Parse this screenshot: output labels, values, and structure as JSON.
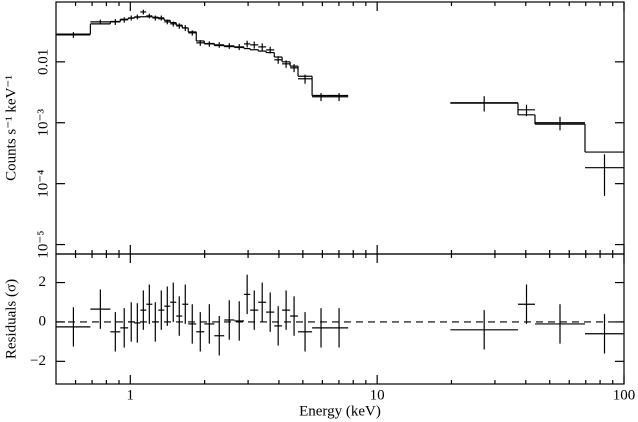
{
  "chart_data": [
    {
      "type": "errorbar",
      "xscale": "log",
      "yscale": "log",
      "xlim": [
        0.5,
        100
      ],
      "ylim": [
        7e-06,
        0.096
      ],
      "xticks": [
        1,
        10,
        100
      ],
      "xminor_ticks": [
        0.6,
        0.7,
        0.8,
        0.9,
        2,
        3,
        4,
        5,
        6,
        7,
        8,
        9,
        20,
        30,
        40,
        50,
        60,
        70,
        80,
        90
      ],
      "yticks": [
        {
          "value": 0.01,
          "label": "0.01"
        },
        {
          "value": 0.001,
          "label": "10⁻³"
        },
        {
          "value": 0.0001,
          "label": "10⁻⁴"
        },
        {
          "value": 1e-05,
          "label": "10⁻⁵"
        }
      ],
      "ylabel": "Counts s⁻¹ keV⁻¹",
      "x_low": [
        0.502,
        0.689,
        0.83,
        0.911,
        0.98,
        1.038,
        1.098,
        1.161,
        1.228,
        1.298,
        1.373,
        1.452,
        1.535,
        1.624,
        1.717,
        1.85,
        1.994,
        2.19,
        2.4,
        2.64,
        2.89,
        3.06,
        3.3,
        3.55,
        3.83,
        4.12,
        4.44,
        4.78,
        5.45,
        6.44,
        19.8,
        37.2,
        43.6,
        69.5
      ],
      "x_high": [
        0.689,
        0.83,
        0.911,
        0.98,
        1.038,
        1.098,
        1.161,
        1.228,
        1.298,
        1.373,
        1.452,
        1.535,
        1.624,
        1.717,
        1.85,
        1.994,
        2.19,
        2.4,
        2.64,
        2.89,
        3.06,
        3.3,
        3.55,
        3.83,
        4.12,
        4.44,
        4.78,
        5.45,
        6.44,
        7.63,
        37.2,
        43.6,
        69.5,
        100
      ],
      "values": [
        0.0277,
        0.0453,
        0.0453,
        0.0489,
        0.0526,
        0.0547,
        0.066,
        0.0568,
        0.0526,
        0.0526,
        0.0453,
        0.042,
        0.0389,
        0.036,
        0.0299,
        0.0205,
        0.0197,
        0.019,
        0.0183,
        0.0176,
        0.0197,
        0.019,
        0.0176,
        0.0157,
        0.0108,
        0.00927,
        0.00797,
        0.00527,
        0.00267,
        0.00267,
        0.00213,
        0.00163,
        0.001,
        0.000183
      ],
      "errors": [
        0.003,
        0.004,
        0.005,
        0.005,
        0.005,
        0.005,
        0.006,
        0.005,
        0.005,
        0.005,
        0.004,
        0.004,
        0.004,
        0.004,
        0.003,
        0.0022,
        0.002,
        0.002,
        0.002,
        0.002,
        0.0025,
        0.0025,
        0.0025,
        0.002,
        0.0015,
        0.0013,
        0.0012,
        0.0009,
        0.0004,
        0.0004,
        0.0006,
        0.00035,
        0.00025,
        0.00012
      ],
      "model": [
        0.0285,
        0.042,
        0.046,
        0.05,
        0.052,
        0.054,
        0.055,
        0.055,
        0.054,
        0.051,
        0.048,
        0.044,
        0.04,
        0.036,
        0.031,
        0.022,
        0.02,
        0.0185,
        0.0178,
        0.0172,
        0.0165,
        0.0158,
        0.015,
        0.0142,
        0.012,
        0.01,
        0.0085,
        0.0058,
        0.0028,
        0.0028,
        0.0021,
        0.00135,
        0.00095,
        0.00033
      ]
    },
    {
      "type": "residuals",
      "xscale": "log",
      "xlim": [
        0.5,
        100
      ],
      "ylim": [
        -3.15,
        3.45
      ],
      "xticks": [
        1,
        10,
        100
      ],
      "xminor_ticks": [
        0.6,
        0.7,
        0.8,
        0.9,
        2,
        3,
        4,
        5,
        6,
        7,
        8,
        9,
        20,
        30,
        40,
        50,
        60,
        70,
        80,
        90
      ],
      "yticks": [
        2,
        0,
        {
          "value": -2,
          "label": "−2"
        }
      ],
      "xlabel": "Energy (keV)",
      "ylabel": "Residuals (σ)",
      "hline": 0,
      "x_low": [
        0.502,
        0.689,
        0.83,
        0.911,
        0.98,
        1.038,
        1.098,
        1.161,
        1.228,
        1.298,
        1.373,
        1.452,
        1.535,
        1.624,
        1.717,
        1.85,
        1.994,
        2.19,
        2.4,
        2.64,
        2.89,
        3.06,
        3.3,
        3.55,
        3.83,
        4.12,
        4.44,
        4.78,
        5.45,
        6.44,
        19.8,
        37.2,
        43.6,
        69.5
      ],
      "x_high": [
        0.689,
        0.83,
        0.911,
        0.98,
        1.038,
        1.098,
        1.161,
        1.228,
        1.298,
        1.373,
        1.452,
        1.535,
        1.624,
        1.717,
        1.85,
        1.994,
        2.19,
        2.4,
        2.64,
        2.89,
        3.06,
        3.3,
        3.55,
        3.83,
        4.12,
        4.44,
        4.78,
        5.45,
        6.44,
        7.63,
        37.2,
        43.6,
        69.5,
        100
      ],
      "values": [
        -0.25,
        0.65,
        -0.5,
        -0.3,
        0.0,
        -0.05,
        0.6,
        0.9,
        0.0,
        0.6,
        0.8,
        1.0,
        0.3,
        0.9,
        -0.1,
        -0.5,
        -0.1,
        -0.7,
        0.1,
        0.05,
        1.4,
        0.6,
        1.0,
        0.5,
        -0.2,
        0.6,
        0.3,
        -0.5,
        -0.3,
        -0.3,
        -0.4,
        0.9,
        -0.1,
        -0.6
      ],
      "errors": [
        1,
        1,
        1,
        1,
        1,
        1,
        1,
        1,
        1,
        1,
        1,
        1,
        1,
        1,
        1,
        1,
        1,
        1,
        1,
        1,
        1,
        1,
        1,
        1,
        1,
        1,
        1,
        1,
        1,
        1,
        1,
        1,
        1,
        1
      ]
    }
  ]
}
